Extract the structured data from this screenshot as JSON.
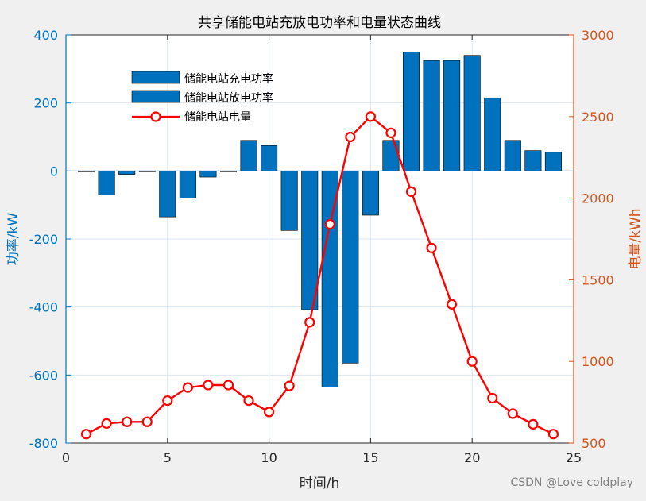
{
  "chart_data": {
    "type": "bar+line",
    "title": "共享储能电站充放电功率和电量状态曲线",
    "xlabel": "时间/h",
    "ylabel_left": "功率/kW",
    "ylabel_right": "电量/kWh",
    "xlim": [
      0,
      25
    ],
    "xticks": [
      0,
      5,
      10,
      15,
      20,
      25
    ],
    "ylim_left": [
      -800,
      400
    ],
    "yticks_left": [
      -800,
      -600,
      -400,
      -200,
      0,
      200,
      400
    ],
    "ylim_right": [
      500,
      3000
    ],
    "yticks_right": [
      500,
      1000,
      1500,
      2000,
      2500,
      3000
    ],
    "grid": true,
    "legend_position": "top-left",
    "x": [
      1,
      2,
      3,
      4,
      5,
      6,
      7,
      8,
      9,
      10,
      11,
      12,
      13,
      14,
      15,
      16,
      17,
      18,
      19,
      20,
      21,
      22,
      23,
      24
    ],
    "series": [
      {
        "name": "储能电站充电功率",
        "type": "bar",
        "axis": "left",
        "values": [
          0,
          0,
          0,
          0,
          0,
          0,
          0,
          0,
          90,
          75,
          0,
          0,
          0,
          0,
          0,
          90,
          350,
          325,
          325,
          340,
          215,
          90,
          60,
          55
        ]
      },
      {
        "name": "储能电站放电功率",
        "type": "bar",
        "axis": "left",
        "values": [
          -2,
          -70,
          -10,
          -2,
          -135,
          -80,
          -18,
          -2,
          0,
          0,
          -175,
          -408,
          -635,
          -565,
          -130,
          0,
          0,
          0,
          0,
          0,
          0,
          0,
          0,
          0
        ]
      },
      {
        "name": "储能电站电量",
        "type": "line",
        "axis": "right",
        "values": [
          555,
          620,
          630,
          630,
          760,
          840,
          855,
          855,
          760,
          690,
          850,
          1240,
          1840,
          2375,
          2500,
          2400,
          2040,
          1695,
          1350,
          1000,
          775,
          680,
          615,
          555
        ]
      }
    ],
    "colors": {
      "bar_fill": "#0072bd",
      "line": "#ff0000",
      "left_axis": "#0072bd",
      "right_axis": "#d95319",
      "grid": "#dbe7f0"
    }
  },
  "watermark": "CSDN @Love coldplay"
}
